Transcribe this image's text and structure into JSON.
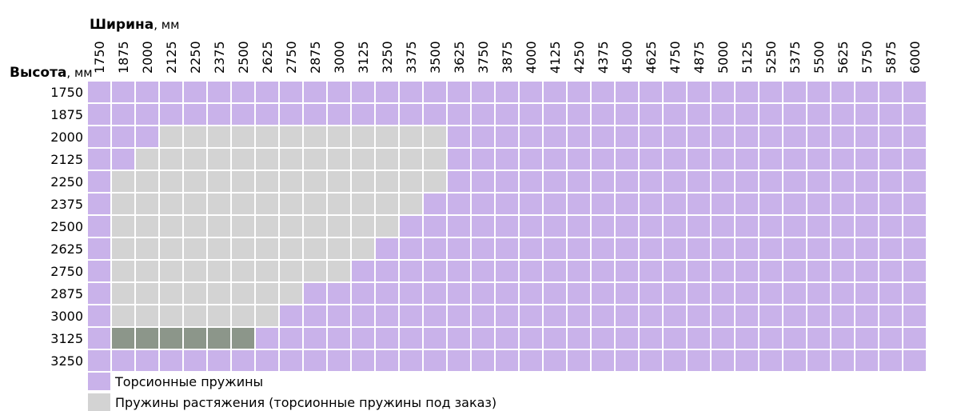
{
  "chart_data": {
    "type": "heatmap",
    "x_title": "Ширина",
    "x_unit": ", мм",
    "y_title": "Высота",
    "y_unit": ", мм",
    "x": [
      1750,
      1875,
      2000,
      2125,
      2250,
      2375,
      2500,
      2625,
      2750,
      2875,
      3000,
      3125,
      3250,
      3375,
      3500,
      3625,
      3750,
      3875,
      4000,
      4125,
      4250,
      4375,
      4500,
      4625,
      4750,
      4875,
      5000,
      5125,
      5250,
      5375,
      5500,
      5625,
      5750,
      5875,
      6000
    ],
    "y": [
      1750,
      1875,
      2000,
      2125,
      2250,
      2375,
      2500,
      2625,
      2750,
      2875,
      3000,
      3125,
      3250
    ],
    "grey_end_x": {
      "2000": 3500,
      "2125": 3500,
      "2250": 3500,
      "2375": 3375,
      "2500": 3250,
      "2625": 3125,
      "2750": 3000,
      "2875": 2750,
      "3000": 2625
    },
    "grey_start_x": {
      "2000": 2125,
      "2125": 2000,
      "2250": 1875,
      "2375": 1875,
      "2500": 1875,
      "2625": 1875,
      "2750": 1875,
      "2875": 1875,
      "3000": 1875
    },
    "dark_cells": {
      "y": 3125,
      "x_from": 1875,
      "x_to": 2500
    },
    "colors": {
      "torsion": "#c9b2ea",
      "extension": "#d3d3d3",
      "dark": "#8c968a",
      "grid": "#ffffff"
    },
    "legend": [
      {
        "label": "Торсионные пружины",
        "color": "#c9b2ea"
      },
      {
        "label": "Пружины растяжения (торсионные пружины под заказ)",
        "color": "#d3d3d3"
      }
    ]
  }
}
